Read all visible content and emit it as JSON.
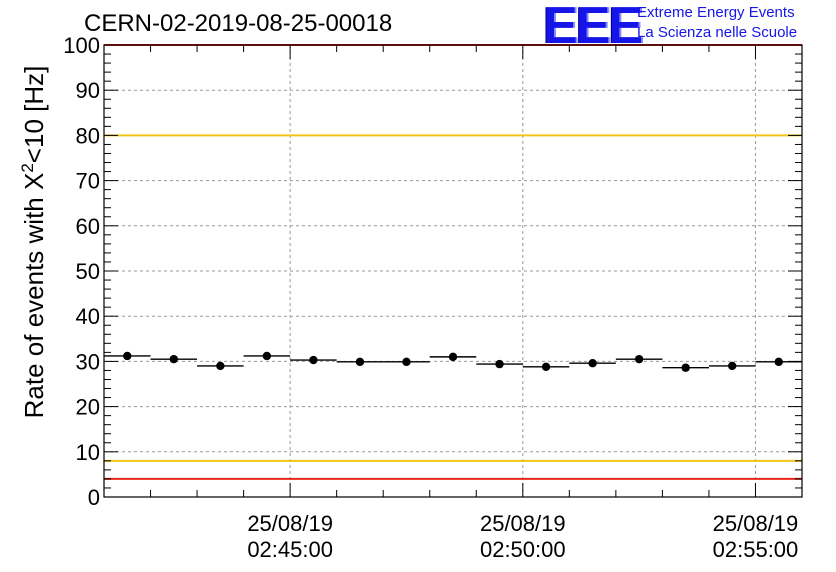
{
  "header": {
    "run_title": "CERN-02-2019-08-25-00018",
    "logo_mark": "EEE",
    "logo_line1": "Extreme Energy Events",
    "logo_line2": "La Scienza nelle Scuole"
  },
  "axis": {
    "ylabel_main": "Rate of events with X",
    "ylabel_sup": "2",
    "ylabel_tail": "<10 [Hz]"
  },
  "chart_data": {
    "type": "scatter",
    "title": "CERN-02-2019-08-25-00018",
    "xlabel": "",
    "ylabel": "Rate of events with X^2<10 [Hz]",
    "ylim": [
      0,
      100
    ],
    "xlim": [
      "25/08/19 02:41:00",
      "25/08/19 02:56:00"
    ],
    "grid": true,
    "y_ticks": [
      0,
      10,
      20,
      30,
      40,
      50,
      60,
      70,
      80,
      90,
      100
    ],
    "x_ticks": [
      {
        "date": "25/08/19",
        "time": "02:45:00",
        "t": "02:45:00"
      },
      {
        "date": "25/08/19",
        "time": "02:50:00",
        "t": "02:50:00"
      },
      {
        "date": "25/08/19",
        "time": "02:55:00",
        "t": "02:55:00"
      }
    ],
    "points": [
      {
        "x": "02:41:30",
        "y": 31.2
      },
      {
        "x": "02:42:30",
        "y": 30.5
      },
      {
        "x": "02:43:30",
        "y": 29.0
      },
      {
        "x": "02:44:30",
        "y": 31.2
      },
      {
        "x": "02:45:30",
        "y": 30.3
      },
      {
        "x": "02:46:30",
        "y": 29.9
      },
      {
        "x": "02:47:30",
        "y": 29.9
      },
      {
        "x": "02:48:30",
        "y": 31.0
      },
      {
        "x": "02:49:30",
        "y": 29.4
      },
      {
        "x": "02:50:30",
        "y": 28.8
      },
      {
        "x": "02:51:30",
        "y": 29.6
      },
      {
        "x": "02:52:30",
        "y": 30.5
      },
      {
        "x": "02:53:30",
        "y": 28.6
      },
      {
        "x": "02:54:30",
        "y": 29.0
      },
      {
        "x": "02:55:30",
        "y": 29.9
      }
    ],
    "bin_width": "00:01:00",
    "reference_lines": [
      {
        "y": 100,
        "color": "#e8261c"
      },
      {
        "y": 80,
        "color": "#f0c419"
      },
      {
        "y": 8,
        "color": "#f0c419"
      },
      {
        "y": 4,
        "color": "#e8261c"
      }
    ]
  }
}
